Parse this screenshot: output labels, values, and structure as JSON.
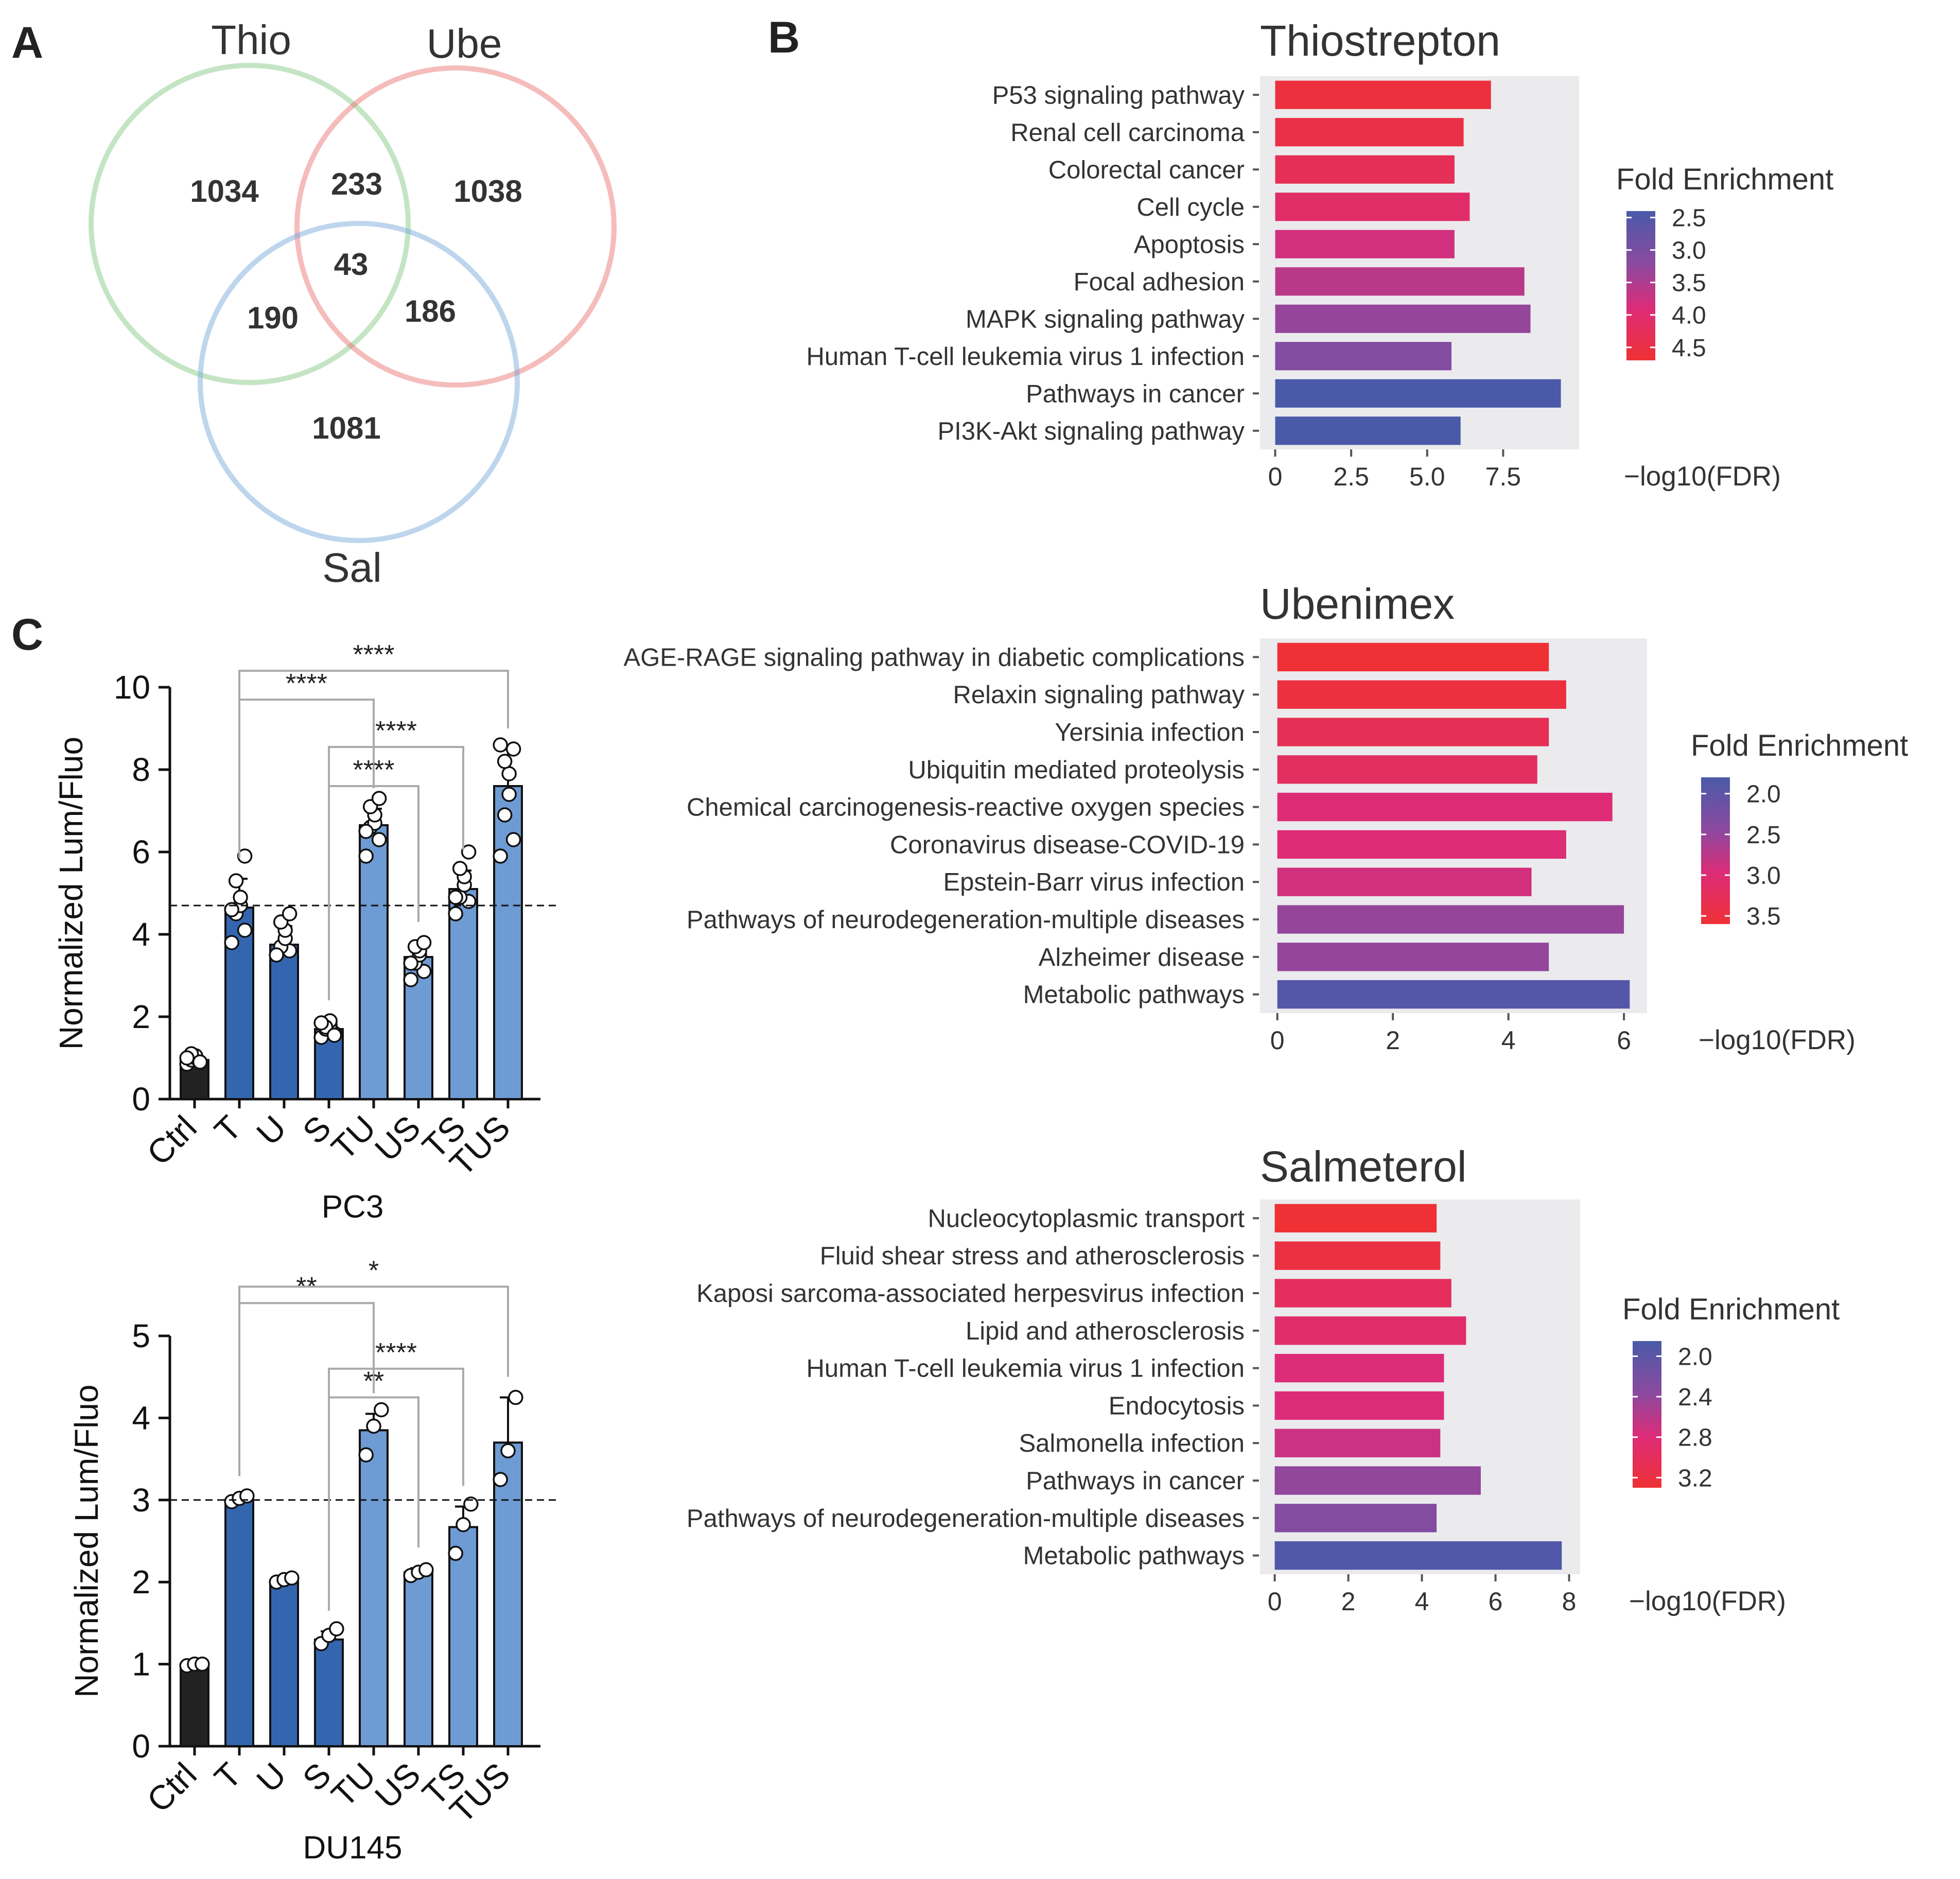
{
  "panel_labels": [
    "A",
    "B",
    "C"
  ],
  "chart_data": [
    {
      "id": "venn",
      "type": "venn",
      "sets": [
        {
          "name": "Thio",
          "color": "#7cc67c"
        },
        {
          "name": "Ube",
          "color": "#e86a6a"
        },
        {
          "name": "Sal",
          "color": "#6fa3d6"
        }
      ],
      "regions": {
        "thio_only": "1034",
        "ube_only": "1038",
        "sal_only": "1081",
        "thio_ube": "233",
        "thio_sal": "190",
        "ube_sal": "186",
        "all": "43"
      }
    },
    {
      "id": "thiostrepton",
      "type": "bar",
      "orientation": "horizontal",
      "title": "Thiostrepton",
      "categories": [
        "P53 signaling pathway",
        "Renal cell carcinoma",
        "Colorectal cancer",
        "Cell cycle",
        "Apoptosis",
        "Focal adhesion",
        "MAPK signaling pathway",
        "Human T-cell leukemia virus 1 infection",
        "Pathways in cancer",
        "PI3K-Akt signaling pathway"
      ],
      "values": [
        7.1,
        6.2,
        5.9,
        6.4,
        5.9,
        8.2,
        8.4,
        5.8,
        9.4,
        6.1
      ],
      "fold_enrichment": [
        4.6,
        4.5,
        4.3,
        4.1,
        3.8,
        3.6,
        3.3,
        3.1,
        2.4,
        2.4
      ],
      "xlabel": "−log10(FDR)",
      "xlim": [
        -0.5,
        10.0
      ],
      "xticks": [
        0,
        2.5,
        5.0,
        7.5
      ],
      "xtick_labels": [
        "0",
        "2.5",
        "5.0",
        "7.5"
      ],
      "legend": {
        "title": "Fold Enrichment",
        "min": 2.4,
        "max": 4.7,
        "ticks": [
          2.5,
          3.0,
          3.5,
          4.0,
          4.5
        ],
        "tick_labels": [
          "2.5",
          "3.0",
          "3.5",
          "4.0",
          "4.5"
        ]
      }
    },
    {
      "id": "ubenimex",
      "type": "bar",
      "orientation": "horizontal",
      "title": "Ubenimex",
      "categories": [
        "AGE-RAGE signaling pathway in diabetic complications",
        "Relaxin signaling pathway",
        "Yersinia infection",
        "Ubiquitin mediated proteolysis",
        "Chemical carcinogenesis-reactive oxygen species",
        "Coronavirus disease-COVID-19",
        "Epstein-Barr virus infection",
        "Pathways of neurodegeneration-multiple diseases",
        "Alzheimer disease",
        "Metabolic pathways"
      ],
      "values": [
        4.7,
        5.0,
        4.7,
        4.5,
        5.8,
        5.0,
        4.4,
        6.0,
        4.7,
        6.1
      ],
      "fold_enrichment": [
        3.6,
        3.5,
        3.3,
        3.2,
        3.0,
        3.0,
        2.9,
        2.5,
        2.5,
        1.9
      ],
      "xlabel": "−log10(FDR)",
      "xlim": [
        -0.3,
        6.4
      ],
      "xticks": [
        0,
        2,
        4,
        6
      ],
      "xtick_labels": [
        "0",
        "2",
        "4",
        "6"
      ],
      "legend": {
        "title": "Fold Enrichment",
        "min": 1.8,
        "max": 3.6,
        "ticks": [
          2.0,
          2.5,
          3.0,
          3.5
        ],
        "tick_labels": [
          "2.0",
          "2.5",
          "3.0",
          "3.5"
        ]
      }
    },
    {
      "id": "salmeterol",
      "type": "bar",
      "orientation": "horizontal",
      "title": "Salmeterol",
      "categories": [
        "Nucleocytoplasmic transport",
        "Fluid shear stress and atherosclerosis",
        "Kaposi sarcoma-associated herpesvirus infection",
        "Lipid and atherosclerosis",
        "Human T-cell leukemia virus 1 infection",
        "Endocytosis",
        "Salmonella infection",
        "Pathways in cancer",
        "Pathways of neurodegeneration-multiple diseases",
        "Metabolic pathways"
      ],
      "values": [
        4.4,
        4.5,
        4.8,
        5.2,
        4.6,
        4.6,
        4.5,
        5.6,
        4.4,
        7.8
      ],
      "fold_enrichment": [
        3.3,
        3.2,
        3.0,
        2.9,
        2.8,
        2.8,
        2.7,
        2.4,
        2.3,
        1.9
      ],
      "xlabel": "−log10(FDR)",
      "xlim": [
        -0.4,
        8.3
      ],
      "xticks": [
        0,
        2,
        4,
        6,
        8
      ],
      "xtick_labels": [
        "0",
        "2",
        "4",
        "6",
        "8"
      ],
      "legend": {
        "title": "Fold Enrichment",
        "min": 1.85,
        "max": 3.3,
        "ticks": [
          2.0,
          2.4,
          2.8,
          3.2
        ],
        "tick_labels": [
          "2.0",
          "2.4",
          "2.8",
          "3.2"
        ]
      }
    },
    {
      "id": "pc3",
      "type": "bar",
      "title": "PC3",
      "ylabel": "Normalized Lum/Fluo",
      "categories": [
        "Ctrl",
        "T",
        "U",
        "S",
        "TU",
        "US",
        "TS",
        "TUS"
      ],
      "values": [
        0.95,
        4.65,
        3.75,
        1.7,
        6.65,
        3.45,
        5.1,
        7.6
      ],
      "errors": [
        0.1,
        0.7,
        0.45,
        0.2,
        0.4,
        0.35,
        0.45,
        0.9
      ],
      "points": [
        [
          0.85,
          0.9,
          0.95,
          1.0,
          1.05,
          1.1,
          0.9,
          1.0
        ],
        [
          3.8,
          4.1,
          4.5,
          4.7,
          4.9,
          5.3,
          5.9,
          4.6
        ],
        [
          3.5,
          3.6,
          3.7,
          3.9,
          4.1,
          4.3,
          4.5,
          3.5
        ],
        [
          1.5,
          1.6,
          1.7,
          1.8,
          1.9,
          1.75,
          1.55,
          1.85
        ],
        [
          5.9,
          6.3,
          6.6,
          6.7,
          6.9,
          7.1,
          7.3,
          6.5
        ],
        [
          2.9,
          3.1,
          3.3,
          3.5,
          3.6,
          3.7,
          3.8,
          3.3
        ],
        [
          4.5,
          4.8,
          4.9,
          5.2,
          5.4,
          5.6,
          6.0,
          4.9
        ],
        [
          5.9,
          6.3,
          6.9,
          7.4,
          7.9,
          8.2,
          8.5,
          8.6
        ]
      ],
      "bar_colors": [
        "#222222",
        "#3466b0",
        "#3466b0",
        "#3466b0",
        "#6e9bd3",
        "#6e9bd3",
        "#6e9bd3",
        "#6e9bd3"
      ],
      "ylim": [
        0,
        10
      ],
      "yticks": [
        0,
        2,
        4,
        6,
        8,
        10
      ],
      "ytick_labels": [
        "0",
        "2",
        "4",
        "6",
        "8",
        "10"
      ],
      "reference_line": 4.7,
      "significance": [
        {
          "from": "T",
          "to": "TU",
          "label": "****",
          "y": 9.7
        },
        {
          "from": "T",
          "to": "TUS",
          "label": "****",
          "y": 10.4
        },
        {
          "from": "S",
          "to": "TS",
          "label": "****",
          "y": 8.55
        },
        {
          "from": "S",
          "to": "US",
          "label": "****",
          "y": 7.6
        }
      ]
    },
    {
      "id": "du145",
      "type": "bar",
      "title": "DU145",
      "ylabel": "Normalized Lum/Fluo",
      "categories": [
        "Ctrl",
        "T",
        "U",
        "S",
        "TU",
        "US",
        "TS",
        "TUS"
      ],
      "values": [
        1.0,
        3.0,
        2.02,
        1.3,
        3.85,
        2.12,
        2.67,
        3.7
      ],
      "errors": [
        0.02,
        0.04,
        0.04,
        0.1,
        0.2,
        0.05,
        0.25,
        0.55
      ],
      "points": [
        [
          0.98,
          1.0,
          1.0
        ],
        [
          2.98,
          3.02,
          3.05
        ],
        [
          2.0,
          2.03,
          2.05
        ],
        [
          1.25,
          1.35,
          1.43
        ],
        [
          3.55,
          3.9,
          4.1
        ],
        [
          2.08,
          2.12,
          2.15
        ],
        [
          2.35,
          2.7,
          2.95
        ],
        [
          3.25,
          3.6,
          4.25
        ]
      ],
      "bar_colors": [
        "#222222",
        "#3466b0",
        "#3466b0",
        "#3466b0",
        "#6e9bd3",
        "#6e9bd3",
        "#6e9bd3",
        "#6e9bd3"
      ],
      "ylim": [
        0,
        5
      ],
      "yticks": [
        0,
        1,
        2,
        3,
        4,
        5
      ],
      "ytick_labels": [
        "0",
        "1",
        "2",
        "3",
        "4",
        "5"
      ],
      "reference_line": 3.0,
      "significance": [
        {
          "from": "T",
          "to": "TU",
          "label": "**",
          "y": 5.4
        },
        {
          "from": "T",
          "to": "TUS",
          "label": "*",
          "y": 5.6
        },
        {
          "from": "S",
          "to": "TS",
          "label": "****",
          "y": 4.6
        },
        {
          "from": "S",
          "to": "US",
          "label": "**",
          "y": 4.25
        }
      ]
    }
  ]
}
